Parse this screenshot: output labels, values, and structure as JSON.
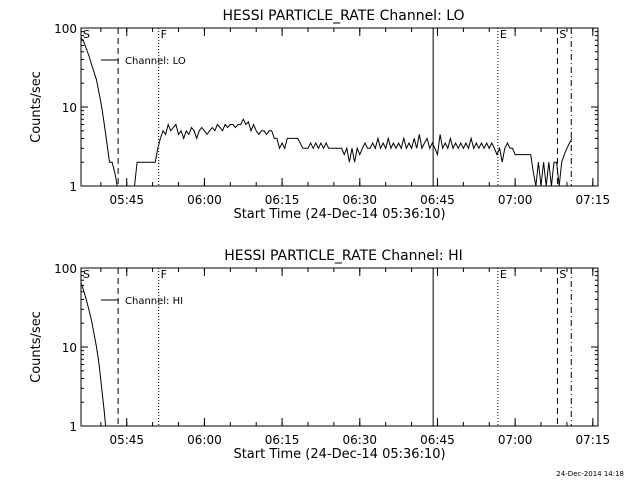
{
  "footer_timestamp": "24-Dec-2014 14:18",
  "chart_data": [
    {
      "type": "line",
      "title": "HESSI PARTICLE_RATE Channel: LO",
      "xlabel": "Start Time (24-Dec-14 05:36:10)",
      "ylabel": "Counts/sec",
      "y_scale": "log",
      "ylim": [
        1,
        100
      ],
      "xlim": [
        "05:36:10",
        "07:16:00"
      ],
      "x_ticks": [
        "05:45",
        "06:00",
        "06:15",
        "06:30",
        "06:45",
        "07:00",
        "07:15"
      ],
      "y_ticks": [
        "1",
        "10",
        "100"
      ],
      "legend": {
        "label": "Channel: LO",
        "placement": "top-left"
      },
      "markers": [
        {
          "label": "S",
          "time": "05:36:10",
          "style": "solid",
          "label_only": true
        },
        {
          "label": "",
          "time": "05:43:20",
          "style": "dashed"
        },
        {
          "label": "F",
          "time": "05:51:10",
          "style": "dotted"
        },
        {
          "label": "",
          "time": "06:44:10",
          "style": "solid"
        },
        {
          "label": "E",
          "time": "06:56:40",
          "style": "dotted"
        },
        {
          "label": "S",
          "time": "07:08:10",
          "style": "dashed"
        },
        {
          "label": "",
          "time": "07:10:50",
          "style": "dashdot"
        }
      ],
      "series": [
        {
          "name": "Channel: LO",
          "points": [
            [
              "05:36:10",
              75
            ],
            [
              "05:36:40",
              68
            ],
            [
              "05:37:10",
              55
            ],
            [
              "05:37:40",
              45
            ],
            [
              "05:38:10",
              35
            ],
            [
              "05:38:40",
              28
            ],
            [
              "05:39:10",
              22
            ],
            [
              "05:39:40",
              15
            ],
            [
              "05:40:10",
              10
            ],
            [
              "05:40:40",
              6
            ],
            [
              "05:41:10",
              3.5
            ],
            [
              "05:41:40",
              2
            ],
            [
              "05:42:10",
              2
            ],
            [
              "05:42:40",
              1.5
            ],
            [
              "05:43:10",
              1
            ],
            [
              "05:43:40",
              1
            ],
            [
              "05:44:10",
              1
            ],
            [
              "05:46:30",
              1
            ],
            [
              "05:47:00",
              2
            ],
            [
              "05:47:30",
              2
            ],
            [
              "05:48:00",
              2
            ],
            [
              "05:48:30",
              2
            ],
            [
              "05:49:00",
              2
            ],
            [
              "05:49:30",
              2
            ],
            [
              "05:50:00",
              2
            ],
            [
              "05:50:30",
              2
            ],
            [
              "05:51:00",
              3
            ],
            [
              "05:51:30",
              4
            ],
            [
              "05:52:00",
              5
            ],
            [
              "05:52:30",
              4.5
            ],
            [
              "05:53:00",
              6
            ],
            [
              "05:53:30",
              5
            ],
            [
              "05:54:00",
              5.5
            ],
            [
              "05:54:30",
              6
            ],
            [
              "05:55:00",
              4.5
            ],
            [
              "05:55:30",
              5
            ],
            [
              "05:56:00",
              4
            ],
            [
              "05:56:30",
              5
            ],
            [
              "05:57:00",
              4.5
            ],
            [
              "05:57:30",
              5.5
            ],
            [
              "05:58:00",
              5
            ],
            [
              "05:58:30",
              4
            ],
            [
              "05:59:00",
              5
            ],
            [
              "05:59:30",
              5.5
            ],
            [
              "06:00:00",
              5
            ],
            [
              "06:00:30",
              4.5
            ],
            [
              "06:01:00",
              5
            ],
            [
              "06:01:30",
              5.5
            ],
            [
              "06:02:00",
              5
            ],
            [
              "06:02:30",
              6
            ],
            [
              "06:03:00",
              5.5
            ],
            [
              "06:03:30",
              5
            ],
            [
              "06:04:00",
              6
            ],
            [
              "06:04:30",
              5.5
            ],
            [
              "06:05:00",
              6
            ],
            [
              "06:05:30",
              6
            ],
            [
              "06:06:00",
              5.5
            ],
            [
              "06:06:30",
              6
            ],
            [
              "06:07:00",
              6
            ],
            [
              "06:07:30",
              7
            ],
            [
              "06:08:00",
              6
            ],
            [
              "06:08:30",
              6.5
            ],
            [
              "06:09:00",
              5
            ],
            [
              "06:09:30",
              6
            ],
            [
              "06:10:00",
              5
            ],
            [
              "06:10:30",
              4.5
            ],
            [
              "06:11:00",
              5
            ],
            [
              "06:11:30",
              5
            ],
            [
              "06:12:00",
              4.5
            ],
            [
              "06:12:30",
              5
            ],
            [
              "06:13:00",
              5
            ],
            [
              "06:13:30",
              4
            ],
            [
              "06:14:00",
              4
            ],
            [
              "06:14:30",
              3
            ],
            [
              "06:15:00",
              3.5
            ],
            [
              "06:15:30",
              3
            ],
            [
              "06:16:00",
              4
            ],
            [
              "06:16:30",
              4
            ],
            [
              "06:17:00",
              4
            ],
            [
              "06:17:30",
              4
            ],
            [
              "06:18:00",
              4
            ],
            [
              "06:18:30",
              3.5
            ],
            [
              "06:19:00",
              3
            ],
            [
              "06:19:30",
              3
            ],
            [
              "06:20:00",
              3
            ],
            [
              "06:20:30",
              3.5
            ],
            [
              "06:21:00",
              3
            ],
            [
              "06:21:30",
              3.5
            ],
            [
              "06:22:00",
              3
            ],
            [
              "06:22:30",
              3.5
            ],
            [
              "06:23:00",
              3
            ],
            [
              "06:23:30",
              3.5
            ],
            [
              "06:24:00",
              3
            ],
            [
              "06:24:30",
              3
            ],
            [
              "06:25:00",
              3
            ],
            [
              "06:25:30",
              3
            ],
            [
              "06:26:00",
              3
            ],
            [
              "06:26:30",
              3
            ],
            [
              "06:27:00",
              2.5
            ],
            [
              "06:27:30",
              3
            ],
            [
              "06:28:00",
              2
            ],
            [
              "06:28:30",
              3
            ],
            [
              "06:29:00",
              2
            ],
            [
              "06:29:30",
              3
            ],
            [
              "06:30:00",
              2.5
            ],
            [
              "06:30:30",
              3
            ],
            [
              "06:31:00",
              3.5
            ],
            [
              "06:31:30",
              3
            ],
            [
              "06:32:00",
              3
            ],
            [
              "06:32:30",
              3.5
            ],
            [
              "06:33:00",
              3
            ],
            [
              "06:33:30",
              4
            ],
            [
              "06:34:00",
              3
            ],
            [
              "06:34:30",
              3.5
            ],
            [
              "06:35:00",
              3
            ],
            [
              "06:35:30",
              4
            ],
            [
              "06:36:00",
              3
            ],
            [
              "06:36:30",
              3.5
            ],
            [
              "06:37:00",
              3
            ],
            [
              "06:37:30",
              3.5
            ],
            [
              "06:38:00",
              3
            ],
            [
              "06:38:30",
              4
            ],
            [
              "06:39:00",
              3
            ],
            [
              "06:39:30",
              3.5
            ],
            [
              "06:40:00",
              3
            ],
            [
              "06:40:30",
              4
            ],
            [
              "06:41:00",
              3
            ],
            [
              "06:41:30",
              4.5
            ],
            [
              "06:42:00",
              3
            ],
            [
              "06:42:30",
              3.5
            ],
            [
              "06:43:00",
              4
            ],
            [
              "06:43:30",
              3
            ],
            [
              "06:44:00",
              3.5
            ],
            [
              "06:44:30",
              3
            ],
            [
              "06:45:00",
              2.5
            ],
            [
              "06:45:30",
              4.5
            ],
            [
              "06:46:00",
              3
            ],
            [
              "06:46:30",
              3.5
            ],
            [
              "06:47:00",
              3
            ],
            [
              "06:47:30",
              4
            ],
            [
              "06:48:00",
              3
            ],
            [
              "06:48:30",
              3.5
            ],
            [
              "06:49:00",
              3
            ],
            [
              "06:49:30",
              3.5
            ],
            [
              "06:50:00",
              3
            ],
            [
              "06:50:30",
              3.5
            ],
            [
              "06:51:00",
              3
            ],
            [
              "06:51:30",
              4
            ],
            [
              "06:52:00",
              3
            ],
            [
              "06:52:30",
              3.5
            ],
            [
              "06:53:00",
              3
            ],
            [
              "06:53:30",
              3.5
            ],
            [
              "06:54:00",
              3
            ],
            [
              "06:54:30",
              3.5
            ],
            [
              "06:55:00",
              3
            ],
            [
              "06:55:30",
              3.5
            ],
            [
              "06:56:00",
              3
            ],
            [
              "06:56:30",
              2.5
            ],
            [
              "06:57:00",
              3
            ],
            [
              "06:57:30",
              2
            ],
            [
              "06:58:00",
              3
            ],
            [
              "06:58:30",
              3.5
            ],
            [
              "06:59:00",
              3
            ],
            [
              "06:59:30",
              3
            ],
            [
              "07:00:00",
              2.5
            ],
            [
              "07:00:30",
              2.5
            ],
            [
              "07:01:00",
              2.5
            ],
            [
              "07:01:30",
              2.5
            ],
            [
              "07:02:00",
              2.5
            ],
            [
              "07:02:30",
              2.5
            ],
            [
              "07:03:00",
              2.5
            ],
            [
              "07:03:30",
              1.5
            ],
            [
              "07:04:00",
              1
            ],
            [
              "07:04:30",
              2
            ],
            [
              "07:05:00",
              1
            ],
            [
              "07:05:30",
              2
            ],
            [
              "07:06:00",
              1
            ],
            [
              "07:06:30",
              2
            ],
            [
              "07:07:00",
              1
            ],
            [
              "07:07:30",
              2
            ],
            [
              "07:08:00",
              2
            ],
            [
              "07:08:30",
              1
            ],
            [
              "07:09:00",
              2
            ],
            [
              "07:09:30",
              2.5
            ],
            [
              "07:10:00",
              3
            ],
            [
              "07:10:30",
              3.5
            ],
            [
              "07:11:00",
              4
            ]
          ]
        }
      ]
    },
    {
      "type": "line",
      "title": "HESSI PARTICLE_RATE Channel: HI",
      "xlabel": "Start Time (24-Dec-14 05:36:10)",
      "ylabel": "Counts/sec",
      "y_scale": "log",
      "ylim": [
        1,
        100
      ],
      "xlim": [
        "05:36:10",
        "07:16:00"
      ],
      "x_ticks": [
        "05:45",
        "06:00",
        "06:15",
        "06:30",
        "06:45",
        "07:00",
        "07:15"
      ],
      "y_ticks": [
        "1",
        "10",
        "100"
      ],
      "legend": {
        "label": "Channel: HI",
        "placement": "top-left"
      },
      "markers": [
        {
          "label": "S",
          "time": "05:36:10",
          "style": "solid",
          "label_only": true
        },
        {
          "label": "",
          "time": "05:43:20",
          "style": "dashed"
        },
        {
          "label": "F",
          "time": "05:51:10",
          "style": "dotted"
        },
        {
          "label": "",
          "time": "06:44:10",
          "style": "solid"
        },
        {
          "label": "E",
          "time": "06:56:40",
          "style": "dotted"
        },
        {
          "label": "S",
          "time": "07:08:10",
          "style": "dashed"
        },
        {
          "label": "",
          "time": "07:10:50",
          "style": "dashdot"
        }
      ],
      "series": [
        {
          "name": "Channel: HI",
          "points": [
            [
              "05:36:10",
              65
            ],
            [
              "05:36:40",
              52
            ],
            [
              "05:37:10",
              40
            ],
            [
              "05:37:40",
              30
            ],
            [
              "05:38:10",
              22
            ],
            [
              "05:38:40",
              15
            ],
            [
              "05:39:10",
              10
            ],
            [
              "05:39:40",
              6
            ],
            [
              "05:40:10",
              3
            ],
            [
              "05:40:40",
              1.5
            ],
            [
              "05:40:55",
              1
            ]
          ]
        }
      ]
    }
  ]
}
